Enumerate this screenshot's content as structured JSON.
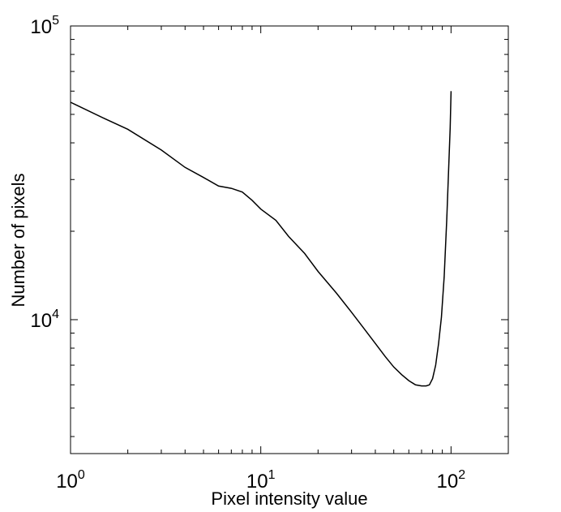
{
  "chart_data": {
    "type": "line",
    "title": "",
    "xlabel": "Pixel intensity value",
    "ylabel": "Number of pixels",
    "xscale": "log",
    "yscale": "log",
    "xlim": [
      1,
      200
    ],
    "ylim": [
      3500,
      100000
    ],
    "grid": false,
    "x_ticks": [
      {
        "value": 1,
        "base": "10",
        "exp": "0"
      },
      {
        "value": 10,
        "base": "10",
        "exp": "1"
      },
      {
        "value": 100,
        "base": "10",
        "exp": "2"
      }
    ],
    "y_ticks": [
      {
        "value": 10000,
        "base": "10",
        "exp": "4"
      },
      {
        "value": 100000,
        "base": "10",
        "exp": "5"
      }
    ],
    "series": [
      {
        "color": "#000000",
        "x": [
          1,
          1.5,
          2,
          3,
          4,
          5,
          6,
          7,
          8,
          9,
          10,
          12,
          14,
          17,
          20,
          25,
          30,
          35,
          40,
          45,
          50,
          55,
          60,
          65,
          70,
          74,
          77,
          80,
          83,
          86,
          89,
          92,
          95,
          97,
          99,
          100
        ],
        "y": [
          55000,
          48500,
          44500,
          37800,
          33000,
          30500,
          28500,
          28000,
          27200,
          25500,
          23800,
          21800,
          19200,
          16800,
          14600,
          12300,
          10600,
          9300,
          8300,
          7500,
          6900,
          6500,
          6200,
          6000,
          5950,
          5950,
          6000,
          6300,
          7000,
          8300,
          10200,
          14000,
          22000,
          32000,
          45000,
          60000
        ]
      }
    ]
  }
}
